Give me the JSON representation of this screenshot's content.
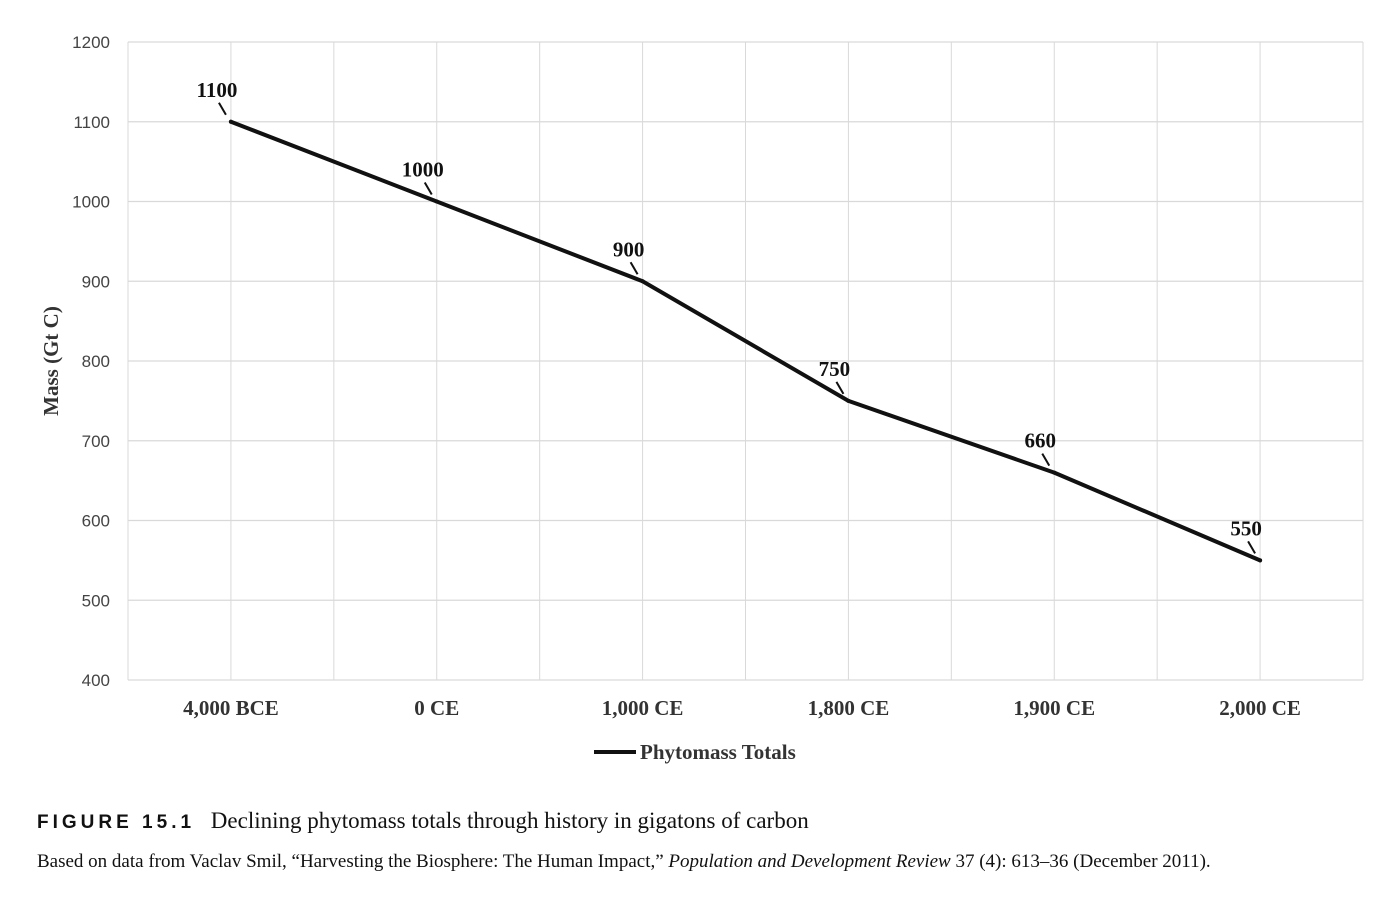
{
  "chart_data": {
    "type": "line",
    "categories": [
      "4,000 BCE",
      "0 CE",
      "1,000 CE",
      "1,800 CE",
      "1,900 CE",
      "2,000 CE"
    ],
    "series": [
      {
        "name": "Phytomass Totals",
        "values": [
          1100,
          1000,
          900,
          750,
          660,
          550
        ]
      }
    ],
    "data_labels": [
      "1100",
      "1000",
      "900",
      "750",
      "660",
      "550"
    ],
    "ylabel": "Mass (Gt C)",
    "xlabel": "",
    "ylim": [
      400,
      1200
    ],
    "yticks": [
      "1200",
      "1100",
      "1000",
      "900",
      "800",
      "700",
      "600",
      "500",
      "400"
    ],
    "grid": true,
    "legend_position": "bottom-center",
    "line_color": "#111111",
    "grid_color": "#d9d9d9"
  },
  "caption": {
    "figure_number": "FIGURE 15.1",
    "text": "Declining phytomass totals through history in gigatons of carbon"
  },
  "source": {
    "prefix": "Based on data from Vaclav Smil, “Harvesting the Biosphere: The Human Impact,” ",
    "journal": "Population and Development Review",
    "suffix": " 37 (4): 613–36 (December 2011)."
  }
}
